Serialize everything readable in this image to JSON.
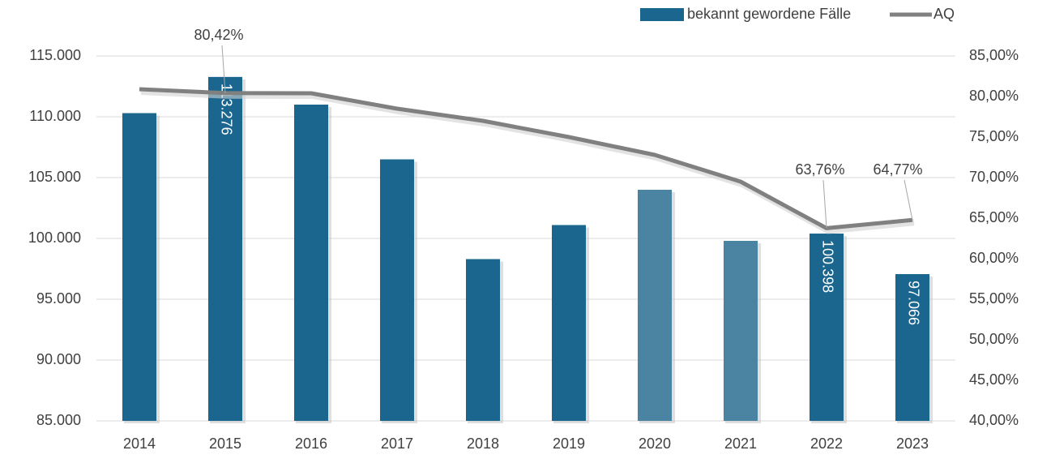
{
  "chart_data": {
    "type": "bar-line",
    "categories": [
      "2014",
      "2015",
      "2016",
      "2017",
      "2018",
      "2019",
      "2020",
      "2021",
      "2022",
      "2023"
    ],
    "series": [
      {
        "name": "bekannt gewordene Fälle",
        "type": "bar",
        "color": "#1a668f",
        "colors": [
          "#1a668f",
          "#1a668f",
          "#1a668f",
          "#1a668f",
          "#1a668f",
          "#1a668f",
          "#4a84a2",
          "#4a84a2",
          "#1a668f",
          "#1a668f"
        ],
        "values": [
          110300,
          113276,
          111000,
          106500,
          98300,
          101100,
          104000,
          99800,
          100398,
          97066
        ],
        "value_labels": [
          null,
          "113.276",
          null,
          null,
          null,
          null,
          null,
          null,
          "100.398",
          "97.066"
        ]
      },
      {
        "name": "AQ",
        "type": "line",
        "axis": "y2",
        "color": "#808080",
        "values": [
          80.9,
          80.42,
          80.4,
          78.5,
          77.0,
          75.0,
          72.8,
          69.5,
          63.76,
          64.77
        ],
        "value_labels": [
          null,
          "80,42%",
          null,
          null,
          null,
          null,
          null,
          null,
          "63,76%",
          "64,77%"
        ]
      }
    ],
    "ylim": [
      85000,
      115000
    ],
    "yticks": [
      {
        "value": 85000,
        "label": "85.000"
      },
      {
        "value": 90000,
        "label": "90.000"
      },
      {
        "value": 95000,
        "label": "95.000"
      },
      {
        "value": 100000,
        "label": "100.000"
      },
      {
        "value": 105000,
        "label": "105.000"
      },
      {
        "value": 110000,
        "label": "110.000"
      },
      {
        "value": 115000,
        "label": "115.000"
      }
    ],
    "y2lim": [
      40,
      85
    ],
    "y2ticks": [
      {
        "value": 40,
        "label": "40,00%"
      },
      {
        "value": 45,
        "label": "45,00%"
      },
      {
        "value": 50,
        "label": "50,00%"
      },
      {
        "value": 55,
        "label": "55,00%"
      },
      {
        "value": 60,
        "label": "60,00%"
      },
      {
        "value": 65,
        "label": "65,00%"
      },
      {
        "value": 70,
        "label": "70,00%"
      },
      {
        "value": 75,
        "label": "75,00%"
      },
      {
        "value": 80,
        "label": "80,00%"
      },
      {
        "value": 85,
        "label": "85,00%"
      }
    ],
    "grid": true,
    "legend": "top-right"
  }
}
